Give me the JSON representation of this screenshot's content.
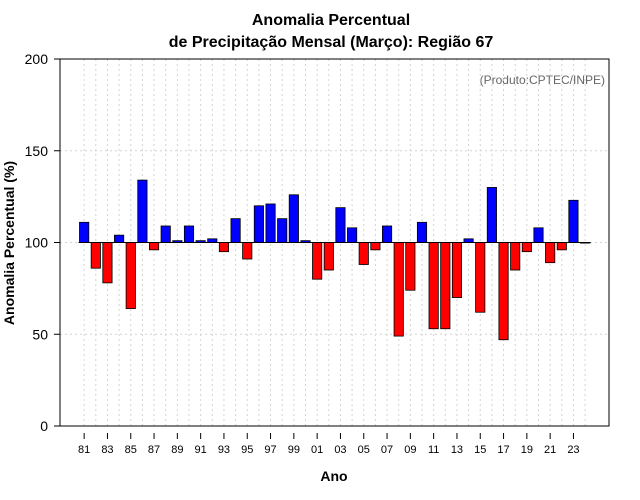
{
  "chart_data": {
    "type": "bar",
    "title": [
      "Anomalia Percentual",
      "de Precipitação Mensal (Março): Região 67"
    ],
    "xlabel": "Ano",
    "ylabel": "Anomalia Percentual (%)",
    "credit": "(Produto:CPTEC/INPE)",
    "baseline": 100,
    "ylim": [
      0,
      200
    ],
    "yticks": [
      0,
      50,
      100,
      150,
      200
    ],
    "grid": true,
    "colors": {
      "above": "#0000ff",
      "below": "#ff0000"
    },
    "categories": [
      "1981",
      "1982",
      "1983",
      "1984",
      "1985",
      "1986",
      "1987",
      "1988",
      "1989",
      "1990",
      "1991",
      "1992",
      "1993",
      "1994",
      "1995",
      "1996",
      "1997",
      "1998",
      "1999",
      "2000",
      "2001",
      "2002",
      "2003",
      "2004",
      "2005",
      "2006",
      "2007",
      "2008",
      "2009",
      "2010",
      "2011",
      "2012",
      "2013",
      "2014",
      "2015",
      "2016",
      "2017",
      "2018",
      "2019",
      "2020",
      "2021",
      "2022",
      "2023",
      "2024"
    ],
    "xtick_labels": [
      "81",
      "83",
      "85",
      "87",
      "89",
      "91",
      "93",
      "95",
      "97",
      "99",
      "01",
      "03",
      "05",
      "07",
      "09",
      "11",
      "13",
      "15",
      "17",
      "19",
      "21",
      "23"
    ],
    "values": [
      111,
      86,
      78,
      104,
      64,
      134,
      96,
      109,
      101,
      109,
      101,
      102,
      95,
      113,
      91,
      120,
      121,
      113,
      126,
      101,
      80,
      85,
      119,
      108,
      88,
      96,
      109,
      49,
      74,
      111,
      53,
      53,
      70,
      102,
      62,
      130,
      47,
      85,
      95,
      108,
      89,
      96,
      123,
      100
    ]
  }
}
